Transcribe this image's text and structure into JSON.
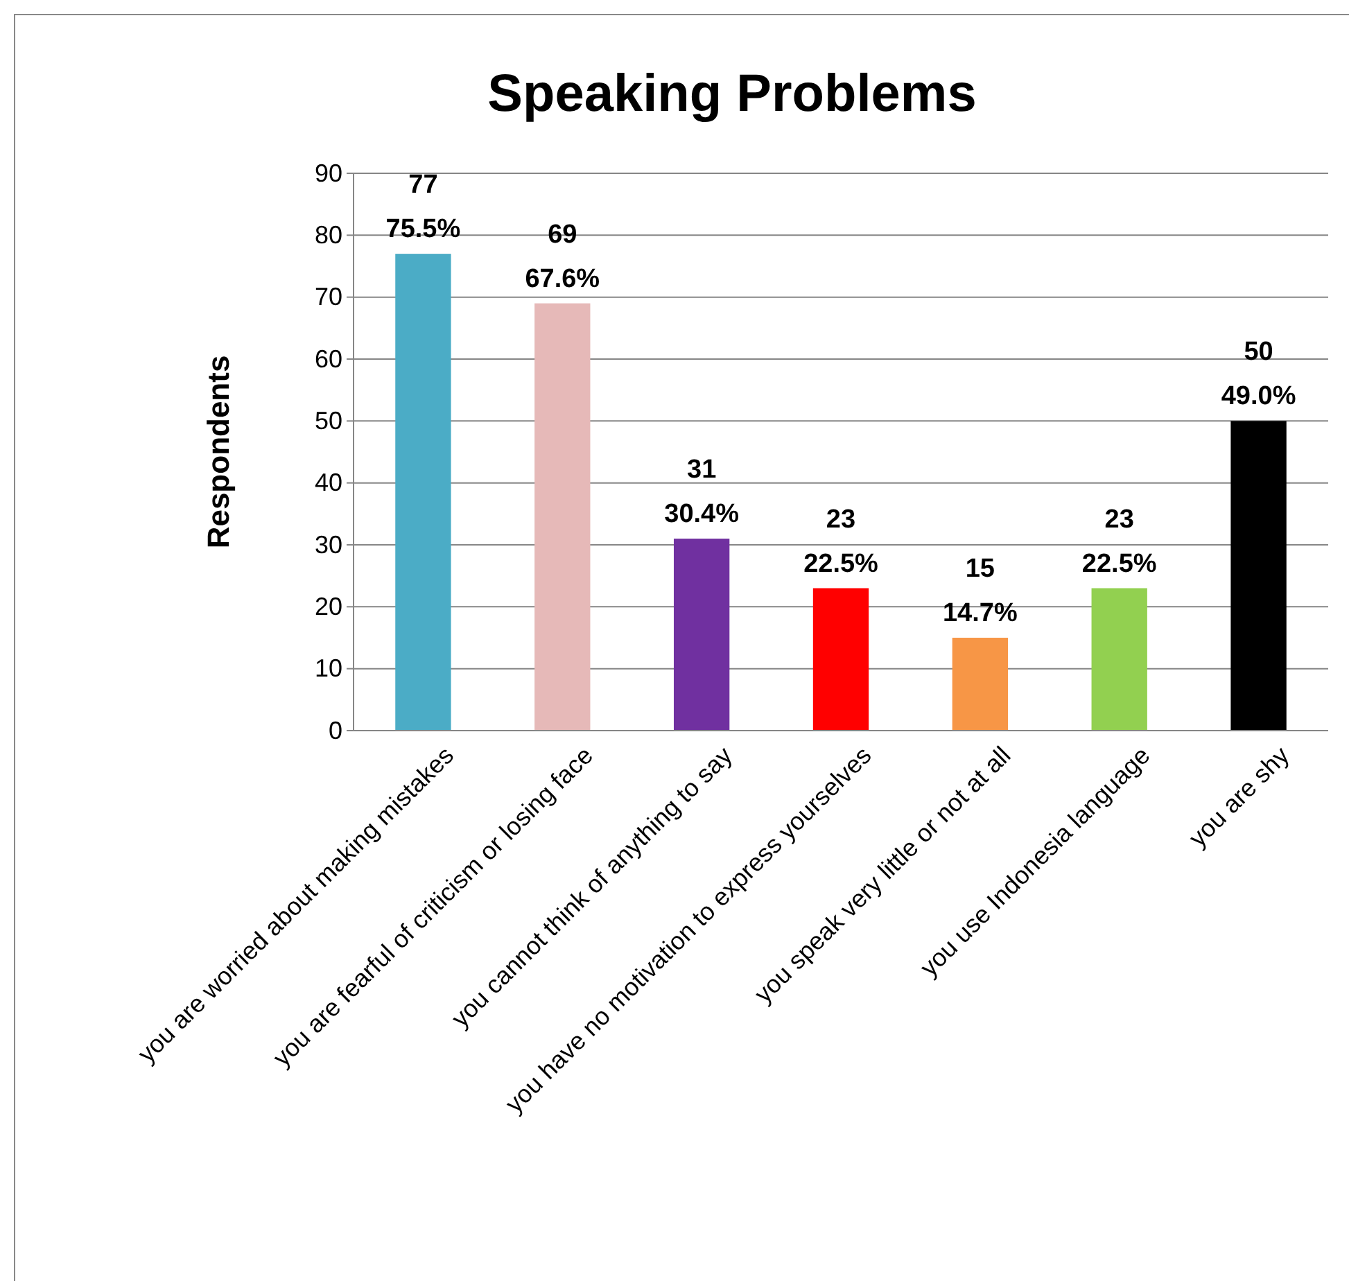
{
  "chart_data": {
    "type": "bar",
    "title": "Speaking Problems",
    "ylabel": "Respondents",
    "categories": [
      "you are worried about making mistakes",
      "you are fearful of criticism or losing face",
      "you cannot think of anything to say",
      "you have no motivation to express yourselves",
      "you speak very little or not at all",
      "you use Indonesia language",
      "you are shy"
    ],
    "values": [
      77,
      69,
      31,
      23,
      15,
      23,
      50
    ],
    "colors": [
      "#4bacc6",
      "#e6b9b8",
      "#7030a0",
      "#ff0000",
      "#f79646",
      "#92d050",
      "#000000"
    ],
    "value_labels": [
      "77\n75.5%",
      "69\n67.6%",
      "31\n30.4%",
      "23\n22.5%",
      "15\n14.7%",
      "23\n22.5%",
      "50\n49.0%"
    ],
    "ylim": [
      0,
      90
    ],
    "yticks": [
      0,
      10,
      20,
      30,
      40,
      50,
      60,
      70,
      80,
      90
    ],
    "grid": "y"
  }
}
